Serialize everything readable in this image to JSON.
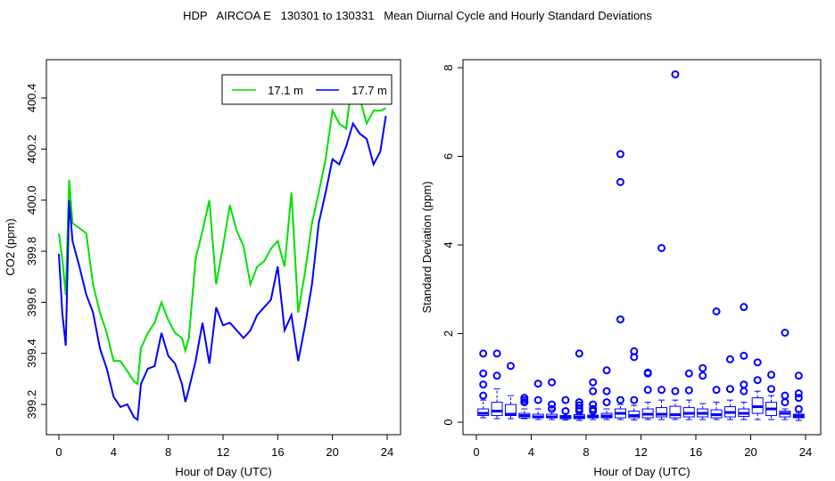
{
  "title": "HDP   AIRCOA E   130301 to 130331   Mean Diurnal Cycle and Hourly Standard Deviations",
  "colors": {
    "green": "#00e000",
    "blue": "#0000ff"
  },
  "chart_data": [
    {
      "type": "line",
      "xlabel": "Hour of Day (UTC)",
      "ylabel": "CO2 (ppm)",
      "xlim": [
        -1,
        25
      ],
      "ylim": [
        399.05,
        400.53
      ],
      "xticks": [
        "0",
        "4",
        "8",
        "12",
        "16",
        "20",
        "24"
      ],
      "yticks": [
        "399.2",
        "399.4",
        "399.6",
        "399.8",
        "400.0",
        "400.2",
        "400.4"
      ],
      "legend": {
        "placement": "top-right",
        "entries": [
          "17.1 m",
          "17.7 m"
        ]
      },
      "x": [
        0,
        0.25,
        0.5,
        0.75,
        1,
        1.5,
        2,
        2.5,
        3,
        3.5,
        4,
        4.5,
        5,
        5.5,
        5.75,
        6,
        6.5,
        7,
        7.5,
        8,
        8.5,
        9,
        9.25,
        9.5,
        10,
        10.5,
        11,
        11.5,
        12,
        12.5,
        13,
        13.5,
        14,
        14.5,
        15,
        15.5,
        16,
        16.5,
        17,
        17.5,
        18,
        18.5,
        19,
        19.5,
        20,
        20.5,
        21,
        21.5,
        22,
        22.5,
        23,
        23.5,
        23.9
      ],
      "series": [
        {
          "name": "17.1 m",
          "color": "#00e000",
          "values": [
            399.87,
            399.77,
            399.63,
            400.08,
            399.91,
            399.89,
            399.87,
            399.67,
            399.56,
            399.48,
            399.37,
            399.37,
            399.33,
            399.29,
            399.28,
            399.42,
            399.48,
            399.52,
            399.6,
            399.53,
            399.48,
            399.46,
            399.41,
            399.46,
            399.77,
            399.88,
            400.0,
            399.67,
            399.82,
            399.98,
            399.88,
            399.82,
            399.67,
            399.74,
            399.76,
            399.81,
            399.84,
            399.74,
            400.03,
            399.56,
            399.72,
            399.91,
            400.03,
            400.16,
            400.35,
            400.3,
            400.28,
            400.49,
            400.4,
            400.3,
            400.35,
            400.35,
            400.36
          ]
        },
        {
          "name": "17.7 m",
          "color": "#0000ff",
          "values": [
            399.79,
            399.56,
            399.43,
            400.0,
            399.84,
            399.74,
            399.63,
            399.56,
            399.42,
            399.34,
            399.23,
            399.19,
            399.2,
            399.15,
            399.14,
            399.28,
            399.34,
            399.35,
            399.48,
            399.39,
            399.36,
            399.28,
            399.21,
            399.26,
            399.37,
            399.52,
            399.36,
            399.58,
            399.51,
            399.52,
            399.49,
            399.46,
            399.49,
            399.55,
            399.58,
            399.61,
            399.74,
            399.49,
            399.55,
            399.37,
            399.51,
            399.67,
            399.91,
            400.03,
            400.16,
            400.14,
            400.21,
            400.3,
            400.26,
            400.24,
            400.14,
            400.19,
            400.33
          ]
        }
      ]
    },
    {
      "type": "boxplot",
      "xlabel": "Hour of Day (UTC)",
      "ylabel": "Standard Deviation (ppm)",
      "xlim": [
        -1,
        25
      ],
      "ylim": [
        -0.3,
        8.2
      ],
      "xticks": [
        "0",
        "4",
        "8",
        "12",
        "16",
        "20",
        "24"
      ],
      "yticks": [
        "0",
        "2",
        "4",
        "6",
        "8"
      ],
      "boxes": [
        {
          "x": 0.5,
          "low": 0.1,
          "q1": 0.15,
          "median": 0.2,
          "q3": 0.3,
          "high": 0.5,
          "outliers": [
            1.55,
            1.1,
            0.85,
            0.6
          ]
        },
        {
          "x": 1.5,
          "low": 0.08,
          "q1": 0.15,
          "median": 0.25,
          "q3": 0.45,
          "high": 0.75,
          "outliers": [
            1.55,
            1.05
          ]
        },
        {
          "x": 2.5,
          "low": 0.08,
          "q1": 0.15,
          "median": 0.18,
          "q3": 0.4,
          "high": 0.6,
          "outliers": [
            1.27
          ]
        },
        {
          "x": 3.5,
          "low": 0.08,
          "q1": 0.1,
          "median": 0.15,
          "q3": 0.2,
          "high": 0.3,
          "outliers": [
            0.55,
            0.5,
            0.45
          ]
        },
        {
          "x": 4.5,
          "low": 0.06,
          "q1": 0.1,
          "median": 0.12,
          "q3": 0.18,
          "high": 0.3,
          "outliers": [
            0.87,
            0.5
          ]
        },
        {
          "x": 5.5,
          "low": 0.06,
          "q1": 0.1,
          "median": 0.12,
          "q3": 0.18,
          "high": 0.28,
          "outliers": [
            0.9,
            0.4,
            0.3
          ]
        },
        {
          "x": 6.5,
          "low": 0.05,
          "q1": 0.08,
          "median": 0.11,
          "q3": 0.15,
          "high": 0.2,
          "outliers": [
            0.5,
            0.25
          ]
        },
        {
          "x": 7.5,
          "low": 0.04,
          "q1": 0.08,
          "median": 0.12,
          "q3": 0.17,
          "high": 0.2,
          "outliers": [
            1.55,
            0.45,
            0.38,
            0.3,
            0.25
          ]
        },
        {
          "x": 8.5,
          "low": 0.06,
          "q1": 0.1,
          "median": 0.12,
          "q3": 0.16,
          "high": 0.22,
          "outliers": [
            0.9,
            0.7,
            0.4,
            0.3,
            0.25
          ]
        },
        {
          "x": 9.5,
          "low": 0.06,
          "q1": 0.1,
          "median": 0.14,
          "q3": 0.2,
          "high": 0.3,
          "outliers": [
            1.17,
            0.7,
            0.45
          ]
        },
        {
          "x": 10.5,
          "low": 0.06,
          "q1": 0.1,
          "median": 0.2,
          "q3": 0.3,
          "high": 0.4,
          "outliers": [
            6.05,
            5.42,
            2.32,
            0.5
          ]
        },
        {
          "x": 11.5,
          "low": 0.05,
          "q1": 0.1,
          "median": 0.15,
          "q3": 0.25,
          "high": 0.38,
          "outliers": [
            1.6,
            1.47,
            0.5
          ]
        },
        {
          "x": 12.5,
          "low": 0.06,
          "q1": 0.1,
          "median": 0.18,
          "q3": 0.3,
          "high": 0.45,
          "outliers": [
            1.12,
            1.1,
            0.73
          ]
        },
        {
          "x": 13.5,
          "low": 0.06,
          "q1": 0.12,
          "median": 0.18,
          "q3": 0.33,
          "high": 0.5,
          "outliers": [
            3.93,
            0.73
          ]
        },
        {
          "x": 14.5,
          "low": 0.06,
          "q1": 0.1,
          "median": 0.17,
          "q3": 0.36,
          "high": 0.5,
          "outliers": [
            7.85,
            0.7
          ]
        },
        {
          "x": 15.5,
          "low": 0.06,
          "q1": 0.12,
          "median": 0.2,
          "q3": 0.33,
          "high": 0.5,
          "outliers": [
            1.1,
            0.72
          ]
        },
        {
          "x": 16.5,
          "low": 0.06,
          "q1": 0.12,
          "median": 0.2,
          "q3": 0.3,
          "high": 0.42,
          "outliers": [
            1.22,
            1.05
          ]
        },
        {
          "x": 17.5,
          "low": 0.06,
          "q1": 0.1,
          "median": 0.17,
          "q3": 0.28,
          "high": 0.45,
          "outliers": [
            2.5,
            0.73
          ]
        },
        {
          "x": 18.5,
          "low": 0.06,
          "q1": 0.12,
          "median": 0.22,
          "q3": 0.35,
          "high": 0.5,
          "outliers": [
            1.42,
            0.75
          ]
        },
        {
          "x": 19.5,
          "low": 0.06,
          "q1": 0.13,
          "median": 0.2,
          "q3": 0.3,
          "high": 0.45,
          "outliers": [
            2.6,
            1.5,
            0.85,
            0.7
          ]
        },
        {
          "x": 20.5,
          "low": 0.06,
          "q1": 0.2,
          "median": 0.35,
          "q3": 0.55,
          "high": 0.7,
          "outliers": [
            1.35,
            0.95
          ]
        },
        {
          "x": 21.5,
          "low": 0.06,
          "q1": 0.15,
          "median": 0.3,
          "q3": 0.45,
          "high": 0.6,
          "outliers": [
            1.07,
            0.75
          ]
        },
        {
          "x": 22.5,
          "low": 0.06,
          "q1": 0.12,
          "median": 0.2,
          "q3": 0.25,
          "high": 0.3,
          "outliers": [
            2.02,
            0.6,
            0.45
          ]
        },
        {
          "x": 23.5,
          "low": 0.04,
          "q1": 0.1,
          "median": 0.14,
          "q3": 0.18,
          "high": 0.22,
          "outliers": [
            1.05,
            0.65,
            0.55,
            0.3
          ]
        }
      ]
    }
  ]
}
